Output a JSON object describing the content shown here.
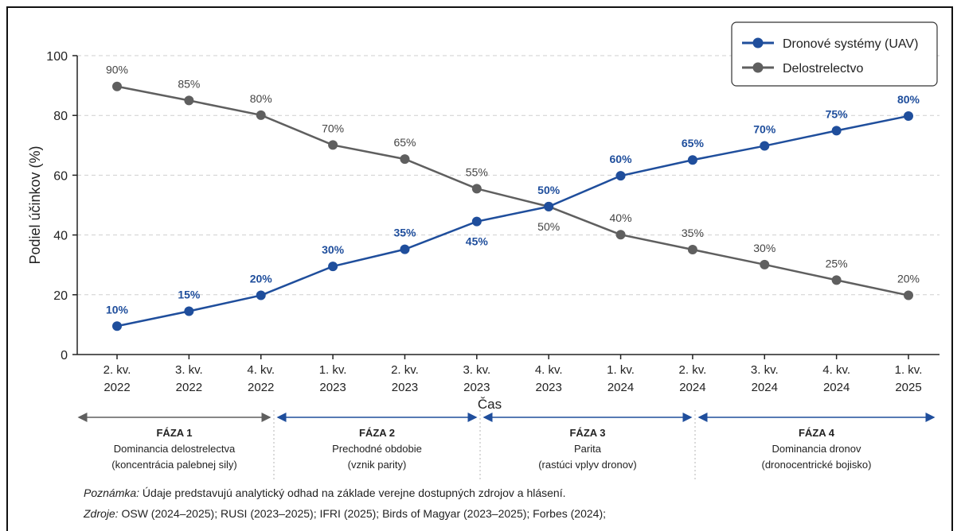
{
  "chart_data": {
    "type": "line",
    "xlabel": "Čas",
    "ylabel": "Podiel účinkov (%)",
    "ylim": [
      0,
      100
    ],
    "yticks": [
      0,
      20,
      40,
      60,
      80,
      100
    ],
    "grid": "horizontal dashed",
    "legend_position": "top-right",
    "categories": [
      [
        "2. kv.",
        "2022"
      ],
      [
        "3. kv.",
        "2022"
      ],
      [
        "4. kv.",
        "2022"
      ],
      [
        "1. kv.",
        "2023"
      ],
      [
        "2. kv.",
        "2023"
      ],
      [
        "3. kv.",
        "2023"
      ],
      [
        "4. kv.",
        "2023"
      ],
      [
        "1. kv.",
        "2024"
      ],
      [
        "2. kv.",
        "2024"
      ],
      [
        "3. kv.",
        "2024"
      ],
      [
        "4. kv.",
        "2024"
      ],
      [
        "1. kv.",
        "2025"
      ]
    ],
    "series": [
      {
        "name": "Dronové systémy (UAV)",
        "color": "#1f4e9c",
        "values": [
          9.5,
          14.5,
          19.8,
          29.5,
          35.2,
          44.5,
          49.5,
          59.8,
          65.1,
          69.8,
          74.9,
          79.8
        ],
        "labels": [
          "10%",
          "15%",
          "20%",
          "30%",
          "35%",
          "45%",
          "50%",
          "60%",
          "65%",
          "70%",
          "75%",
          "80%"
        ],
        "label_pos": [
          "above",
          "above",
          "above",
          "above",
          "above",
          "below",
          "above",
          "above",
          "above",
          "above",
          "above",
          "above"
        ]
      },
      {
        "name": "Delostrelectvo",
        "color": "#5f5f5f",
        "values": [
          89.7,
          85.0,
          80.1,
          70.1,
          65.4,
          55.5,
          49.5,
          40.1,
          35.1,
          30.1,
          24.9,
          19.8
        ],
        "labels": [
          "90%",
          "85%",
          "80%",
          "70%",
          "65%",
          "55%",
          "50%",
          "40%",
          "35%",
          "30%",
          "25%",
          "20%"
        ],
        "label_pos": [
          "above",
          "above",
          "above",
          "above",
          "above",
          "above",
          "below",
          "above",
          "above",
          "above",
          "above",
          "above"
        ]
      }
    ],
    "phases": [
      {
        "title": "FÁZA 1",
        "line1": "Dominancia delostrelectva",
        "line2": "(koncentrácia palebnej sily)",
        "color": "#5f5f5f"
      },
      {
        "title": "FÁZA 2",
        "line1": "Prechodné obdobie",
        "line2": "(vznik parity)",
        "color": "#1f4e9c"
      },
      {
        "title": "FÁZA 3",
        "line1": "Parita",
        "line2": "(rastúci vplyv dronov)",
        "color": "#1f4e9c"
      },
      {
        "title": "FÁZA 4",
        "line1": "Dominancia dronov",
        "line2": "(dronocentrické bojisko)",
        "color": "#1f4e9c"
      }
    ]
  },
  "notes": {
    "note_label": "Poznámka:",
    "note_text": " Údaje predstavujú analytický odhad na základe verejne dostupných zdrojov a hlásení.",
    "sources_label": "Zdroje:",
    "sources_text": " OSW (2024–2025); RUSI (2023–2025); IFRI (2025); Birds of Magyar (2023–2025); Forbes (2024);"
  }
}
